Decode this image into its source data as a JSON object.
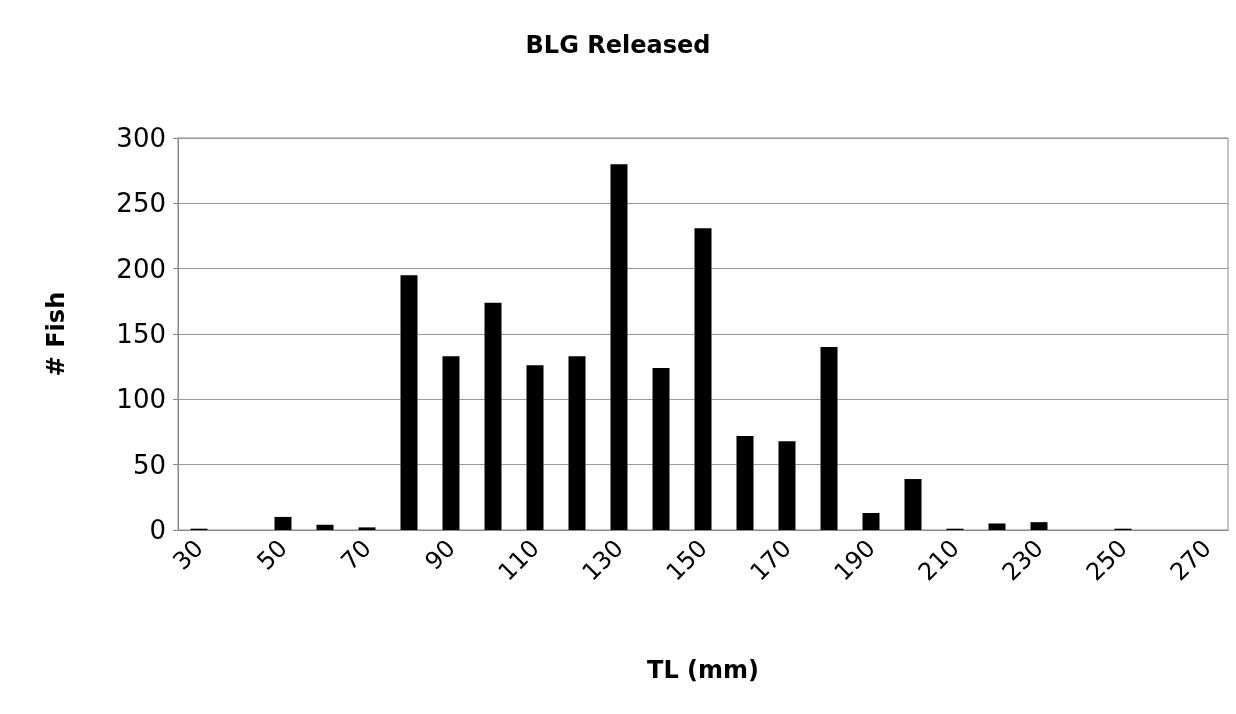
{
  "chart_data": {
    "type": "bar",
    "title": "BLG Released",
    "xlabel": "TL (mm)",
    "ylabel": "# Fish",
    "categories": [
      "30",
      null,
      "50",
      null,
      "70",
      null,
      "90",
      null,
      "110",
      null,
      "130",
      null,
      "150",
      null,
      "170",
      null,
      "190",
      null,
      "210",
      null,
      "230",
      null,
      "250",
      null,
      "270"
    ],
    "values": [
      1,
      0,
      10,
      4,
      2,
      195,
      133,
      174,
      126,
      133,
      280,
      124,
      231,
      72,
      68,
      140,
      13,
      39,
      1,
      5,
      6,
      0,
      1,
      0,
      0
    ],
    "color": "#000000",
    "ylim": [
      0,
      300
    ],
    "yticks": [
      0,
      50,
      100,
      150,
      200,
      250,
      300
    ],
    "grid": "y"
  }
}
